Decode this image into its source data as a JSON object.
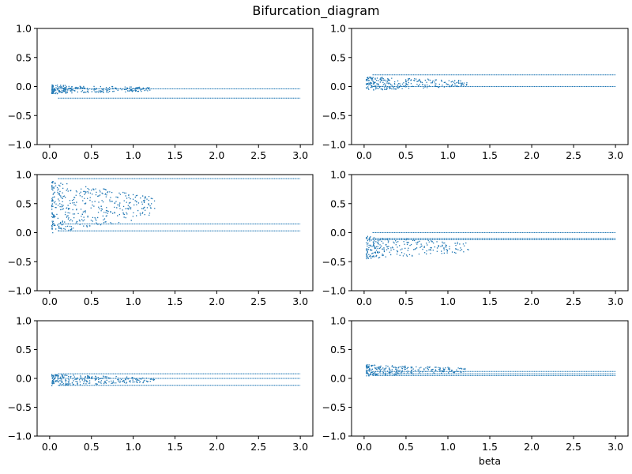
{
  "figure": {
    "title": "Bifurcation_diagram"
  },
  "chart_data": [
    {
      "type": "scatter",
      "panel": "top-left",
      "xlim": [
        -0.15,
        3.15
      ],
      "ylim": [
        -1.0,
        1.0
      ],
      "xticks": [
        0.0,
        0.5,
        1.0,
        1.5,
        2.0,
        2.5,
        3.0
      ],
      "xtick_labels": [
        "0.0",
        "0.5",
        "1.0",
        "1.5",
        "2.0",
        "2.5",
        "3.0"
      ],
      "yticks": [
        -1.0,
        -0.5,
        0.0,
        0.5,
        1.0
      ],
      "ytick_labels": [
        "−1.0",
        "−0.5",
        "0.0",
        "0.5",
        "1.0"
      ],
      "xlabel": "",
      "color": "#1f77b4",
      "branches": [
        -0.04,
        -0.2
      ],
      "branch_start": 0.1,
      "transient": {
        "x_end": 1.2,
        "center": -0.04,
        "amp": 0.08,
        "density": "medium"
      }
    },
    {
      "type": "scatter",
      "panel": "top-right",
      "xlim": [
        -0.15,
        3.15
      ],
      "ylim": [
        -1.0,
        1.0
      ],
      "xticks": [
        0.0,
        0.5,
        1.0,
        1.5,
        2.0,
        2.5,
        3.0
      ],
      "xtick_labels": [
        "0.0",
        "0.5",
        "1.0",
        "1.5",
        "2.0",
        "2.5",
        "3.0"
      ],
      "yticks": [
        -1.0,
        -0.5,
        0.0,
        0.5,
        1.0
      ],
      "ytick_labels": [
        "−1.0",
        "−0.5",
        "0.0",
        "0.5",
        "1.0"
      ],
      "xlabel": "",
      "color": "#1f77b4",
      "branches": [
        0.2,
        0.0
      ],
      "branch_start": 0.1,
      "transient": {
        "x_end": 1.25,
        "center": 0.06,
        "amp": 0.12,
        "density": "medium"
      }
    },
    {
      "type": "scatter",
      "panel": "middle-left",
      "xlim": [
        -0.15,
        3.15
      ],
      "ylim": [
        -1.0,
        1.0
      ],
      "xticks": [
        0.0,
        0.5,
        1.0,
        1.5,
        2.0,
        2.5,
        3.0
      ],
      "xtick_labels": [
        "0.0",
        "0.5",
        "1.0",
        "1.5",
        "2.0",
        "2.5",
        "3.0"
      ],
      "yticks": [
        -1.0,
        -0.5,
        0.0,
        0.5,
        1.0
      ],
      "ytick_labels": [
        "−1.0",
        "−0.5",
        "0.0",
        "0.5",
        "1.0"
      ],
      "xlabel": "",
      "color": "#1f77b4",
      "branches": [
        0.93,
        0.15,
        0.03
      ],
      "branch_start": 0.1,
      "transient": {
        "x_end": 1.25,
        "center": 0.45,
        "amp": 0.45,
        "density": "high"
      }
    },
    {
      "type": "scatter",
      "panel": "middle-right",
      "xlim": [
        -0.15,
        3.15
      ],
      "ylim": [
        -1.0,
        1.0
      ],
      "xticks": [
        0.0,
        0.5,
        1.0,
        1.5,
        2.0,
        2.5,
        3.0
      ],
      "xtick_labels": [
        "0.0",
        "0.5",
        "1.0",
        "1.5",
        "2.0",
        "2.5",
        "3.0"
      ],
      "yticks": [
        -1.0,
        -0.5,
        0.0,
        0.5,
        1.0
      ],
      "ytick_labels": [
        "−1.0",
        "−0.5",
        "0.0",
        "0.5",
        "1.0"
      ],
      "xlabel": "",
      "color": "#1f77b4",
      "branches": [
        0.0,
        -0.1,
        -0.12
      ],
      "branch_start": 0.1,
      "transient": {
        "x_end": 1.25,
        "center": -0.25,
        "amp": 0.2,
        "density": "medium"
      }
    },
    {
      "type": "scatter",
      "panel": "bottom-left",
      "xlim": [
        -0.15,
        3.15
      ],
      "ylim": [
        -1.0,
        1.0
      ],
      "xticks": [
        0.0,
        0.5,
        1.0,
        1.5,
        2.0,
        2.5,
        3.0
      ],
      "xtick_labels": [
        "0.0",
        "0.5",
        "1.0",
        "1.5",
        "2.0",
        "2.5",
        "3.0"
      ],
      "yticks": [
        -1.0,
        -0.5,
        0.0,
        0.5,
        1.0
      ],
      "ytick_labels": [
        "−1.0",
        "−0.5",
        "0.0",
        "0.5",
        "1.0"
      ],
      "xlabel": "",
      "color": "#1f77b4",
      "branches": [
        0.08,
        0.0,
        -0.12
      ],
      "branch_start": 0.1,
      "transient": {
        "x_end": 1.25,
        "center": -0.02,
        "amp": 0.1,
        "density": "medium"
      }
    },
    {
      "type": "scatter",
      "panel": "bottom-right",
      "xlim": [
        -0.15,
        3.15
      ],
      "ylim": [
        -1.0,
        1.0
      ],
      "xticks": [
        0.0,
        0.5,
        1.0,
        1.5,
        2.0,
        2.5,
        3.0
      ],
      "xtick_labels": [
        "0.0",
        "0.5",
        "1.0",
        "1.5",
        "2.0",
        "2.5",
        "3.0"
      ],
      "yticks": [
        -1.0,
        -0.5,
        0.0,
        0.5,
        1.0
      ],
      "ytick_labels": [
        "−1.0",
        "−0.5",
        "0.0",
        "0.5",
        "1.0"
      ],
      "xlabel": "beta",
      "color": "#1f77b4",
      "branches": [
        0.12,
        0.08,
        0.05
      ],
      "branch_start": 0.1,
      "transient": {
        "x_end": 1.2,
        "center": 0.15,
        "amp": 0.1,
        "density": "medium"
      }
    }
  ]
}
